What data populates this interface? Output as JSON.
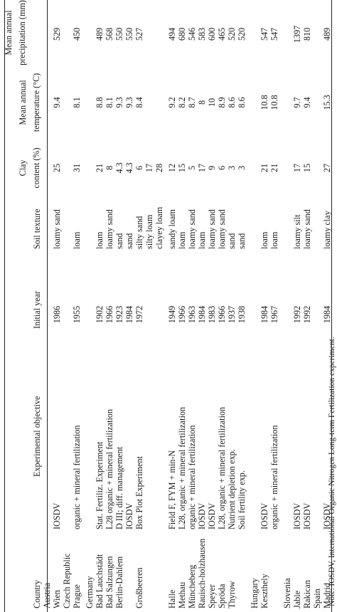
{
  "table": {
    "headers": {
      "country": "Country",
      "objective": "Experimental objective",
      "initial_year": "Initial year",
      "soil_texture": "Soil texture",
      "clay_line1": "Clay",
      "clay_line2": "content (%)",
      "temp_line1": "Mean annual",
      "temp_line2": "temperature (°C)",
      "precip_line1": "Mean annual",
      "precip_line2": "precipitation (mm)"
    },
    "rows": [
      {
        "country": "Austria",
        "objective": "",
        "year": "",
        "texture": "",
        "clay": "",
        "temp": "",
        "precip": ""
      },
      {
        "country": "Wien",
        "objective": "IOSDV",
        "year": "1986",
        "texture": "loamy sand",
        "clay": "25",
        "temp": "9.4",
        "precip": "529"
      },
      {
        "country": "Czech Republic",
        "objective": "",
        "year": "",
        "texture": "",
        "clay": "",
        "temp": "",
        "precip": ""
      },
      {
        "country": "Prague",
        "objective": "organic + mineral fertilization",
        "year": "1955",
        "texture": "loam",
        "clay": "31",
        "temp": "8.1",
        "precip": "450"
      },
      {
        "country": "Germany",
        "objective": "",
        "year": "",
        "texture": "",
        "clay": "",
        "temp": "",
        "precip": ""
      },
      {
        "country": "Bad Lauchstädt",
        "objective": "Stat. Fertiliz. Experiment",
        "year": "1902",
        "texture": "loam",
        "clay": "21",
        "temp": "8.8",
        "precip": "489"
      },
      {
        "country": "Bad Salzungen",
        "objective": "L28 organic + mineral fertilization",
        "year": "1966",
        "texture": "loamy sand",
        "clay": "8",
        "temp": "8.1",
        "precip": "568"
      },
      {
        "country": "Berlin-Dahlem",
        "objective": "D III; diff. management",
        "year": "1923",
        "texture": "sand",
        "clay": "4.3",
        "temp": "9.3",
        "precip": "550"
      },
      {
        "country": "",
        "objective": "IOSDV",
        "year": "1984",
        "texture": "sand",
        "clay": "4.3",
        "temp": "9.3",
        "precip": "550"
      },
      {
        "country": "Großbeeren",
        "objective": "Box Plot Experiment",
        "year": "1972",
        "texture": "silty sand",
        "clay": "6",
        "temp": "8.4",
        "precip": "527"
      },
      {
        "country": "",
        "objective": "",
        "year": "",
        "texture": "silty loam",
        "clay": "17",
        "temp": "",
        "precip": ""
      },
      {
        "country": "",
        "objective": "",
        "year": "",
        "texture": "clayey loam",
        "clay": "28",
        "temp": "",
        "precip": ""
      },
      {
        "country": "Halle",
        "objective": "Field F, FYM + min-N",
        "year": "1949",
        "texture": "sandy loam",
        "clay": "12",
        "temp": "9.2",
        "precip": "494"
      },
      {
        "country": "Methau",
        "objective": "L28, organic + mineral fertilization",
        "year": "1966",
        "texture": "loam",
        "clay": "15",
        "temp": "8.2",
        "precip": "680"
      },
      {
        "country": "Müncheberg",
        "objective": "organic + mineral fertilization",
        "year": "1963",
        "texture": "loamy sand",
        "clay": "5",
        "temp": "8.7",
        "precip": "546"
      },
      {
        "country": "Rauisch-holzhausen",
        "objective": "IOSDV",
        "year": "1984",
        "texture": "loam",
        "clay": "17",
        "temp": "8",
        "precip": "583"
      },
      {
        "country": "Speyer",
        "objective": "IOSDV",
        "year": "1983",
        "texture": "loamy sand",
        "clay": "9",
        "temp": "10",
        "precip": "600"
      },
      {
        "country": "Spröda",
        "objective": "L28, organic + mineral fertilization",
        "year": "1966",
        "texture": "loamy sand",
        "clay": "6",
        "temp": "8.9",
        "precip": "465"
      },
      {
        "country": "Thyrow",
        "objective": "Nutrient depletion exp.",
        "year": "1937",
        "texture": "sand",
        "clay": "3",
        "temp": "8.6",
        "precip": "520"
      },
      {
        "country": "",
        "objective": "Soil fertility exp.",
        "year": "1938",
        "texture": "sand",
        "clay": "3",
        "temp": "8.6",
        "precip": "520"
      },
      {
        "country": "Hungary",
        "objective": "",
        "year": "",
        "texture": "",
        "clay": "",
        "temp": "",
        "precip": ""
      },
      {
        "country": "Keszthely",
        "objective": "IOSDV",
        "year": "1984",
        "texture": "loam",
        "clay": "21",
        "temp": "10.8",
        "precip": "547"
      },
      {
        "country": "",
        "objective": "organic + mineral fertilization",
        "year": "1967",
        "texture": "loam",
        "clay": "21",
        "temp": "10.8",
        "precip": "547"
      },
      {
        "country": "Slovenia",
        "objective": "",
        "year": "",
        "texture": "",
        "clay": "",
        "temp": "",
        "precip": ""
      },
      {
        "country": "Jable",
        "objective": "IOSDV",
        "year": "1992",
        "texture": "loamy silt",
        "clay": "17",
        "temp": "9.7",
        "precip": "1397"
      },
      {
        "country": "Rakican",
        "objective": "IOSDV",
        "year": "1992",
        "texture": "loamy sand",
        "clay": "15",
        "temp": "9.4",
        "precip": "810"
      },
      {
        "country": "Spain",
        "objective": "",
        "year": "",
        "texture": "",
        "clay": "",
        "temp": "",
        "precip": ""
      },
      {
        "country": "Madrid",
        "objective": "IOSDV",
        "year": "1984",
        "texture": "loamy clay",
        "clay": "27",
        "temp": "15.3",
        "precip": "489"
      }
    ]
  },
  "note": "Note: IOSDV, International Organic Nitrogen Long-term Fertilization experiment."
}
